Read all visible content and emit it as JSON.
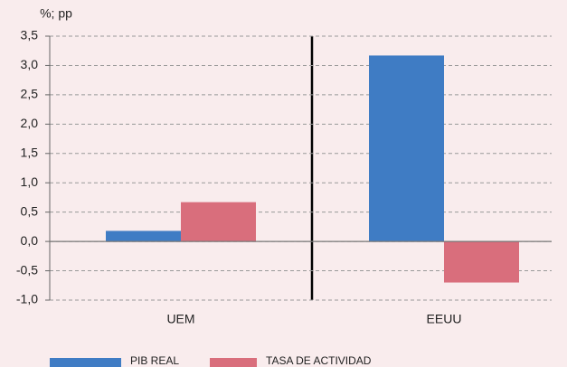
{
  "chart_data": {
    "type": "bar",
    "y_unit_label": "%; pp",
    "categories": [
      "UEM",
      "EEUU"
    ],
    "series": [
      {
        "name": "PIB REAL",
        "color": "#3f7cc4",
        "values": [
          0.18,
          3.17
        ]
      },
      {
        "name": "TASA DE ACTIVIDAD",
        "color": "#d96e7c",
        "values": [
          0.67,
          -0.7
        ]
      }
    ],
    "ylim": [
      -1.0,
      3.5
    ],
    "yticks": [
      {
        "value": -1.0,
        "label": "-1,0"
      },
      {
        "value": -0.5,
        "label": "-0,5"
      },
      {
        "value": 0,
        "label": "0,0"
      },
      {
        "value": 0.5,
        "label": "0,5"
      },
      {
        "value": 1.0,
        "label": "1,0"
      },
      {
        "value": 1.5,
        "label": "1,5"
      },
      {
        "value": 2.0,
        "label": "2,0"
      },
      {
        "value": 2.5,
        "label": "2,5"
      },
      {
        "value": 3.0,
        "label": "3,0"
      },
      {
        "value": 3.5,
        "label": "3,5"
      }
    ],
    "grid": true
  }
}
